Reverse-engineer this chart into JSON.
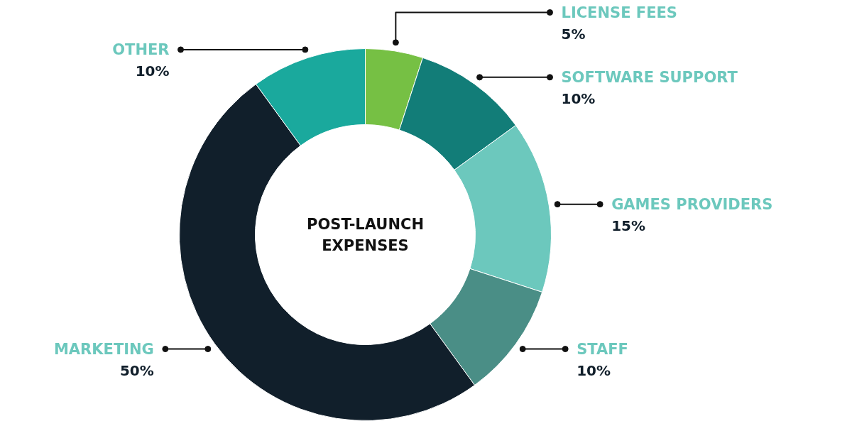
{
  "chart_data": {
    "type": "donut",
    "title": "POST-LAUNCH EXPENSES",
    "categories": [
      "LICENSE FEES",
      "SOFTWARE SUPPORT",
      "GAMES PROVIDERS",
      "STAFF",
      "MARKETING",
      "OTHER"
    ],
    "values": [
      5,
      10,
      15,
      10,
      50,
      10
    ],
    "value_labels": [
      "5%",
      "10%",
      "15%",
      "10%",
      "50%",
      "10%"
    ],
    "colors": [
      "#76c044",
      "#127d78",
      "#6cc8bd",
      "#4a8e86",
      "#111f2b",
      "#1aa99d"
    ]
  }
}
